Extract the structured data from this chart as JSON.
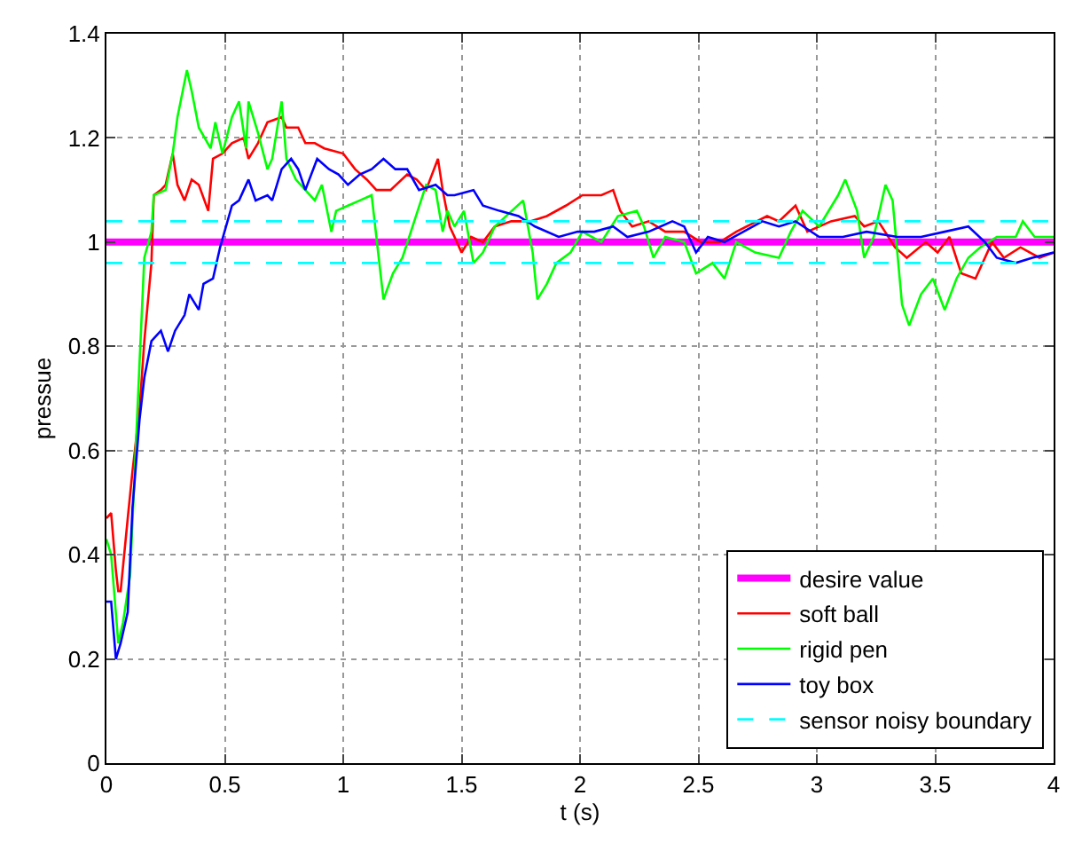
{
  "chart_data": {
    "type": "line",
    "xlabel": "t (s)",
    "ylabel": "pressue",
    "xlim": [
      0,
      4
    ],
    "xticks": [
      0,
      0.5,
      1,
      1.5,
      2,
      2.5,
      3,
      3.5,
      4
    ],
    "ylim": [
      0,
      1.4
    ],
    "yticks": [
      0,
      0.2,
      0.4,
      0.6,
      0.8,
      1,
      1.2,
      1.4
    ],
    "grid": true,
    "legend": "bottom right",
    "line_style": "solid",
    "series": [
      {
        "name": "desire value",
        "color": "#ff00ff",
        "x": [
          0,
          4
        ],
        "values": [
          1,
          1
        ]
      },
      {
        "name": "soft ball",
        "color": "#ff0000",
        "x": [
          0,
          0.02,
          0.04,
          0.05,
          0.06,
          0.09,
          0.11,
          0.14,
          0.16,
          0.19,
          0.2,
          0.23,
          0.25,
          0.28,
          0.3,
          0.33,
          0.36,
          0.39,
          0.43,
          0.45,
          0.49,
          0.53,
          0.58,
          0.6,
          0.64,
          0.68,
          0.74,
          0.76,
          0.81,
          0.84,
          0.88,
          0.92,
          1.0,
          1.05,
          1.1,
          1.14,
          1.2,
          1.27,
          1.31,
          1.35,
          1.4,
          1.42,
          1.45,
          1.5,
          1.54,
          1.59,
          1.64,
          1.71,
          1.79,
          1.86,
          1.94,
          2.01,
          2.09,
          2.14,
          2.17,
          2.22,
          2.29,
          2.36,
          2.44,
          2.51,
          2.59,
          2.66,
          2.79,
          2.84,
          2.91,
          2.96,
          3.06,
          3.16,
          3.2,
          3.26,
          3.33,
          3.38,
          3.46,
          3.51,
          3.56,
          3.61,
          3.67,
          3.74,
          3.79,
          3.86,
          3.94,
          4.0
        ],
        "values": [
          0.47,
          0.48,
          0.37,
          0.33,
          0.33,
          0.47,
          0.56,
          0.68,
          0.81,
          0.96,
          1.09,
          1.1,
          1.11,
          1.17,
          1.11,
          1.08,
          1.12,
          1.11,
          1.06,
          1.16,
          1.17,
          1.19,
          1.2,
          1.16,
          1.19,
          1.23,
          1.24,
          1.22,
          1.22,
          1.19,
          1.19,
          1.18,
          1.17,
          1.14,
          1.12,
          1.1,
          1.1,
          1.13,
          1.12,
          1.1,
          1.16,
          1.1,
          1.03,
          0.98,
          1.01,
          1.0,
          1.03,
          1.04,
          1.04,
          1.05,
          1.07,
          1.09,
          1.09,
          1.1,
          1.06,
          1.03,
          1.04,
          1.02,
          1.02,
          1.0,
          1.0,
          1.02,
          1.05,
          1.04,
          1.07,
          1.02,
          1.04,
          1.05,
          1.03,
          1.04,
          0.99,
          0.97,
          1.0,
          0.98,
          1.01,
          0.94,
          0.93,
          1.0,
          0.97,
          0.99,
          0.97,
          0.98
        ]
      },
      {
        "name": "rigid pen",
        "color": "#00ff00",
        "x": [
          0,
          0.02,
          0.05,
          0.07,
          0.1,
          0.14,
          0.16,
          0.19,
          0.2,
          0.25,
          0.28,
          0.3,
          0.34,
          0.36,
          0.39,
          0.44,
          0.46,
          0.49,
          0.53,
          0.56,
          0.59,
          0.6,
          0.64,
          0.68,
          0.7,
          0.74,
          0.76,
          0.8,
          0.84,
          0.88,
          0.91,
          0.95,
          0.97,
          1.02,
          1.07,
          1.12,
          1.15,
          1.17,
          1.21,
          1.25,
          1.3,
          1.35,
          1.39,
          1.42,
          1.44,
          1.47,
          1.51,
          1.55,
          1.59,
          1.64,
          1.76,
          1.8,
          1.82,
          1.86,
          1.9,
          1.96,
          2.01,
          2.09,
          2.16,
          2.24,
          2.27,
          2.31,
          2.36,
          2.44,
          2.49,
          2.56,
          2.61,
          2.66,
          2.74,
          2.84,
          2.89,
          2.94,
          3.01,
          3.09,
          3.12,
          3.17,
          3.2,
          3.24,
          3.29,
          3.32,
          3.36,
          3.39,
          3.44,
          3.49,
          3.54,
          3.59,
          3.64,
          3.69,
          3.76,
          3.84,
          3.87,
          3.92,
          4.0
        ],
        "values": [
          0.43,
          0.4,
          0.23,
          0.27,
          0.36,
          0.77,
          0.97,
          1.02,
          1.09,
          1.1,
          1.17,
          1.24,
          1.33,
          1.29,
          1.22,
          1.18,
          1.23,
          1.17,
          1.24,
          1.27,
          1.18,
          1.27,
          1.21,
          1.14,
          1.16,
          1.27,
          1.16,
          1.12,
          1.1,
          1.08,
          1.11,
          1.02,
          1.06,
          1.07,
          1.08,
          1.09,
          0.97,
          0.89,
          0.94,
          0.97,
          1.04,
          1.11,
          1.1,
          1.02,
          1.06,
          1.03,
          1.06,
          0.96,
          0.98,
          1.03,
          1.08,
          0.98,
          0.89,
          0.92,
          0.96,
          0.98,
          1.02,
          1.0,
          1.05,
          1.06,
          1.03,
          0.97,
          1.01,
          1.0,
          0.94,
          0.96,
          0.93,
          1.0,
          0.98,
          0.97,
          1.02,
          1.06,
          1.03,
          1.09,
          1.12,
          1.06,
          0.97,
          1.01,
          1.11,
          1.08,
          0.88,
          0.84,
          0.9,
          0.93,
          0.87,
          0.93,
          0.97,
          0.99,
          1.01,
          1.01,
          1.04,
          1.01,
          1.01
        ]
      },
      {
        "name": "toy box",
        "color": "#0000ff",
        "x": [
          0,
          0.02,
          0.04,
          0.06,
          0.09,
          0.11,
          0.14,
          0.16,
          0.19,
          0.23,
          0.26,
          0.29,
          0.33,
          0.35,
          0.39,
          0.41,
          0.45,
          0.48,
          0.53,
          0.56,
          0.6,
          0.63,
          0.68,
          0.7,
          0.74,
          0.78,
          0.81,
          0.84,
          0.89,
          0.94,
          0.98,
          1.02,
          1.07,
          1.12,
          1.17,
          1.22,
          1.27,
          1.32,
          1.39,
          1.44,
          1.47,
          1.55,
          1.59,
          1.66,
          1.74,
          1.81,
          1.91,
          1.99,
          2.06,
          2.14,
          2.2,
          2.29,
          2.39,
          2.44,
          2.49,
          2.54,
          2.61,
          2.69,
          2.77,
          2.84,
          2.91,
          3.01,
          3.11,
          3.21,
          3.34,
          3.44,
          3.54,
          3.64,
          3.71,
          3.76,
          3.84,
          3.91,
          4.0
        ],
        "values": [
          0.31,
          0.31,
          0.2,
          0.23,
          0.29,
          0.49,
          0.66,
          0.74,
          0.81,
          0.83,
          0.79,
          0.83,
          0.86,
          0.9,
          0.87,
          0.92,
          0.93,
          0.99,
          1.07,
          1.08,
          1.12,
          1.08,
          1.09,
          1.08,
          1.14,
          1.16,
          1.14,
          1.1,
          1.16,
          1.14,
          1.13,
          1.11,
          1.13,
          1.14,
          1.16,
          1.14,
          1.14,
          1.1,
          1.11,
          1.09,
          1.09,
          1.1,
          1.07,
          1.06,
          1.05,
          1.03,
          1.01,
          1.02,
          1.02,
          1.03,
          1.01,
          1.02,
          1.04,
          1.03,
          0.98,
          1.01,
          1.0,
          1.02,
          1.04,
          1.03,
          1.04,
          1.01,
          1.01,
          1.02,
          1.01,
          1.01,
          1.02,
          1.03,
          1.0,
          0.97,
          0.96,
          0.97,
          0.98
        ]
      },
      {
        "name": "sensor noisy boundary",
        "color": "#00ffff",
        "line_style": "dashed",
        "x": [
          0,
          4
        ],
        "values": [
          1.04,
          1.04
        ]
      },
      {
        "color": "#00ffff",
        "line_style": "dashed",
        "x": [
          0,
          4
        ],
        "values": [
          0.96,
          0.96
        ]
      }
    ]
  }
}
